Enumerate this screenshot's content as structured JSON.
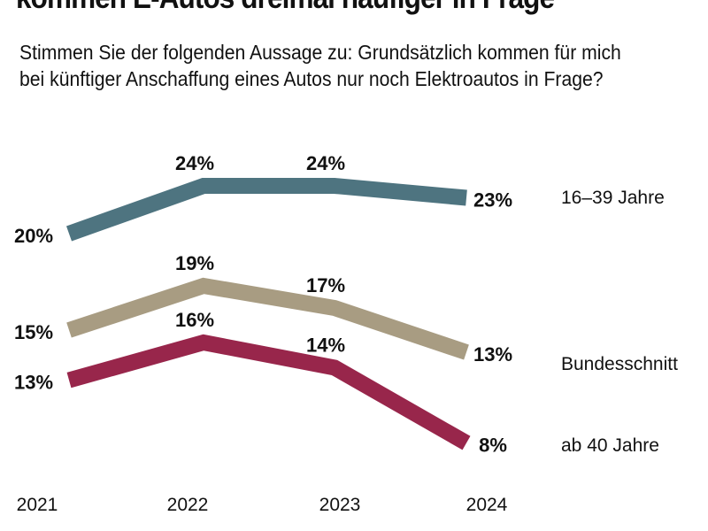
{
  "title": "kommen E-Autos dreimal häufiger in Frage",
  "subtitle_line1": "Stimmen Sie der folgenden Aussage zu: Grundsätzlich kommen für mich",
  "subtitle_line2": "bei künftiger Anschaffung eines Autos nur noch Elektroautos in Frage?",
  "chart_data": {
    "type": "line",
    "title": "kommen E-Autos dreimal häufiger in Frage",
    "categories": [
      "2021",
      "2022",
      "2023",
      "2024"
    ],
    "unit": "%",
    "grid": false,
    "legend": "right-end labels",
    "series": [
      {
        "name": "16–39 Jahre",
        "values": [
          20,
          24,
          24,
          23
        ],
        "color": "#4e7480"
      },
      {
        "name": "Bundesschnitt",
        "values": [
          15,
          19,
          17,
          13
        ],
        "color": "#a89c82"
      },
      {
        "name": "ab 40 Jahre",
        "values": [
          13,
          16,
          14,
          8
        ],
        "color": "#98264b"
      }
    ]
  }
}
